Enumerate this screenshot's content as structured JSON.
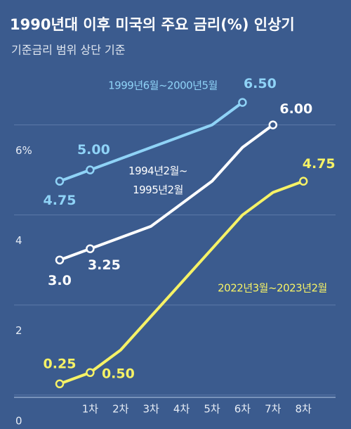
{
  "chart_data": {
    "type": "line",
    "title": "1990년대 이후 미국의 주요 금리(%) 인상기",
    "subtitle": "기준금리 범위 상단 기준",
    "categories": [
      null,
      "1차",
      "2차",
      "3차",
      "4차",
      "5차",
      "6차",
      "7차",
      "8차"
    ],
    "series": [
      {
        "name": "1999년6월~2000년5월",
        "color": "#8fd3f7",
        "values": [
          4.75,
          5.0,
          5.25,
          5.5,
          5.75,
          6.0,
          6.5,
          null,
          null
        ],
        "value_labels": [
          "4.75",
          "5.00",
          null,
          null,
          null,
          null,
          "6.50",
          null,
          null
        ]
      },
      {
        "name": "1994년2월~1995년2월",
        "color": "#ffffff",
        "values": [
          3.0,
          3.25,
          3.5,
          3.75,
          4.25,
          4.75,
          5.5,
          6.0,
          null
        ],
        "value_labels": [
          "3.0",
          "3.25",
          null,
          null,
          null,
          null,
          null,
          "6.00",
          null
        ]
      },
      {
        "name": "2022년3월~2023년2월",
        "color": "#f6f266",
        "values": [
          0.25,
          0.5,
          1.0,
          1.75,
          2.5,
          3.25,
          4.0,
          4.5,
          4.75
        ],
        "value_labels": [
          "0.25",
          "0.50",
          null,
          null,
          null,
          null,
          null,
          null,
          "4.75"
        ]
      }
    ],
    "ylim": [
      -0.05,
      6.9
    ],
    "yticks": [
      0,
      2,
      4,
      {
        "value": 6,
        "label": "6%"
      }
    ],
    "grid": true
  }
}
